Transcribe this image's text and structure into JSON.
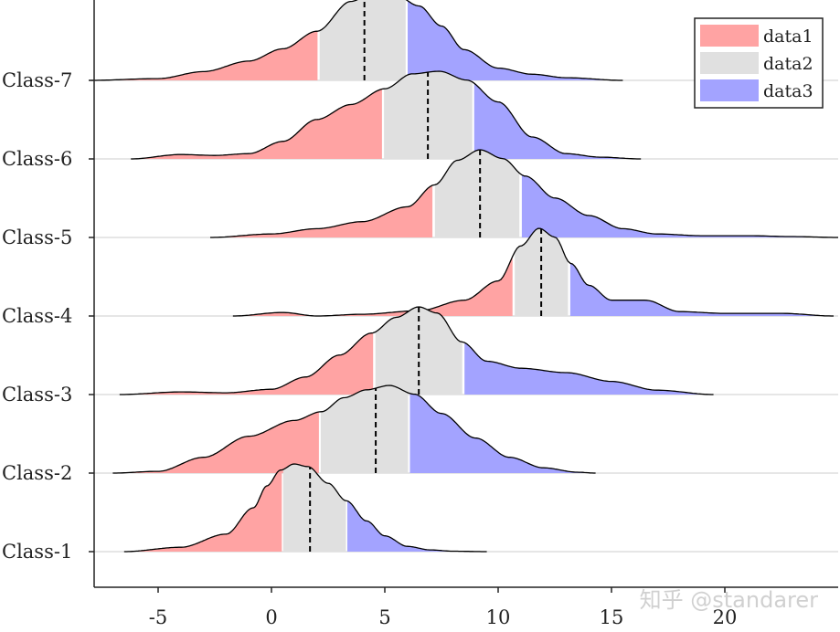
{
  "chart_data": {
    "type": "ridgeline",
    "title": "",
    "xlabel": "",
    "ylabel": "",
    "xlim": [
      -8,
      25
    ],
    "x_ticks": [
      -5,
      0,
      5,
      10,
      15,
      20
    ],
    "categories": [
      "Class-1",
      "Class-2",
      "Class-3",
      "Class-4",
      "Class-5",
      "Class-6",
      "Class-7"
    ],
    "legend": {
      "position": "top-right",
      "entries": [
        "data1",
        "data2",
        "data3"
      ]
    },
    "colors": {
      "data1": "#ffa3a3",
      "data2": "#e0e0e0",
      "data3": "#a3a3ff",
      "baseline": "#e6e6e6",
      "outline": "#000000"
    },
    "classes": [
      {
        "name": "Class-1",
        "x": [
          -6.5,
          -4,
          -2,
          -0.8,
          -0.2,
          0.4,
          1.0,
          1.6,
          2.5,
          3.3,
          4.2,
          5.0,
          6.0,
          7.0,
          8.0,
          9.5
        ],
        "density": [
          0.0,
          0.05,
          0.2,
          0.5,
          0.75,
          0.93,
          1.0,
          0.97,
          0.78,
          0.58,
          0.35,
          0.18,
          0.06,
          0.02,
          0.005,
          0.0
        ],
        "q1": 0.5,
        "median": 1.7,
        "q3": 3.3
      },
      {
        "name": "Class-2",
        "x": [
          -7,
          -5,
          -3,
          -1,
          1,
          2.2,
          3.2,
          4.2,
          5.2,
          6.3,
          7.5,
          9,
          10.5,
          12,
          13.5,
          14.3
        ],
        "density": [
          0.0,
          0.02,
          0.18,
          0.42,
          0.6,
          0.7,
          0.86,
          0.95,
          1.0,
          0.9,
          0.68,
          0.4,
          0.18,
          0.06,
          0.01,
          0.0
        ],
        "q1": 2.1,
        "median": 4.6,
        "q3": 6.1
      },
      {
        "name": "Class-3",
        "x": [
          -6.7,
          -4,
          -2,
          0,
          1.5,
          3,
          4.4,
          5.5,
          6.5,
          7.3,
          8.4,
          9.5,
          11,
          13,
          15,
          17,
          19.5
        ],
        "density": [
          0.0,
          0.03,
          0.02,
          0.06,
          0.2,
          0.45,
          0.7,
          0.88,
          1.0,
          0.93,
          0.6,
          0.38,
          0.3,
          0.25,
          0.15,
          0.05,
          0.0
        ],
        "q1": 4.5,
        "median": 6.5,
        "q3": 8.5
      },
      {
        "name": "Class-4",
        "x": [
          -1.7,
          0.5,
          2,
          4,
          6.5,
          8.5,
          10,
          11,
          11.8,
          12.5,
          13.2,
          14,
          15,
          16.5,
          18,
          20,
          22.5,
          24.8
        ],
        "density": [
          0.0,
          0.04,
          0.0,
          0.02,
          0.06,
          0.18,
          0.4,
          0.8,
          1.0,
          0.9,
          0.6,
          0.35,
          0.18,
          0.18,
          0.05,
          0.03,
          0.03,
          0.0
        ],
        "q1": 10.7,
        "median": 11.9,
        "q3": 13.1
      },
      {
        "name": "Class-5",
        "x": [
          -2.7,
          0,
          2,
          4,
          6,
          7.2,
          8.2,
          9.2,
          10.2,
          11.2,
          12.5,
          14,
          15.5,
          17,
          19,
          21,
          23,
          25
        ],
        "density": [
          0.0,
          0.04,
          0.1,
          0.18,
          0.35,
          0.6,
          0.88,
          1.0,
          0.9,
          0.7,
          0.45,
          0.25,
          0.1,
          0.04,
          0.02,
          0.02,
          0.01,
          0.0
        ],
        "q1": 7.2,
        "median": 9.2,
        "q3": 11.0
      },
      {
        "name": "Class-6",
        "x": [
          -6.2,
          -4,
          -2.5,
          -1,
          0.5,
          2,
          3.5,
          5,
          6.2,
          7.4,
          8.6,
          10,
          11.5,
          13,
          14.5,
          16.3
        ],
        "density": [
          0.0,
          0.05,
          0.04,
          0.06,
          0.2,
          0.45,
          0.62,
          0.8,
          0.97,
          1.0,
          0.9,
          0.65,
          0.25,
          0.06,
          0.02,
          0.0
        ],
        "q1": 4.9,
        "median": 6.9,
        "q3": 8.9
      },
      {
        "name": "Class-7",
        "x": [
          -8,
          -5,
          -3,
          -1,
          0.5,
          2,
          3.5,
          4.5,
          5.5,
          6.5,
          7.5,
          8.5,
          10,
          11.5,
          13,
          15.5
        ],
        "density": [
          0.0,
          0.02,
          0.1,
          0.22,
          0.36,
          0.56,
          0.9,
          1.0,
          0.97,
          0.85,
          0.62,
          0.35,
          0.14,
          0.07,
          0.03,
          0.0
        ],
        "q1": 2.1,
        "median": 4.1,
        "q3": 6.0
      }
    ]
  },
  "watermark": "知乎 @standarer"
}
